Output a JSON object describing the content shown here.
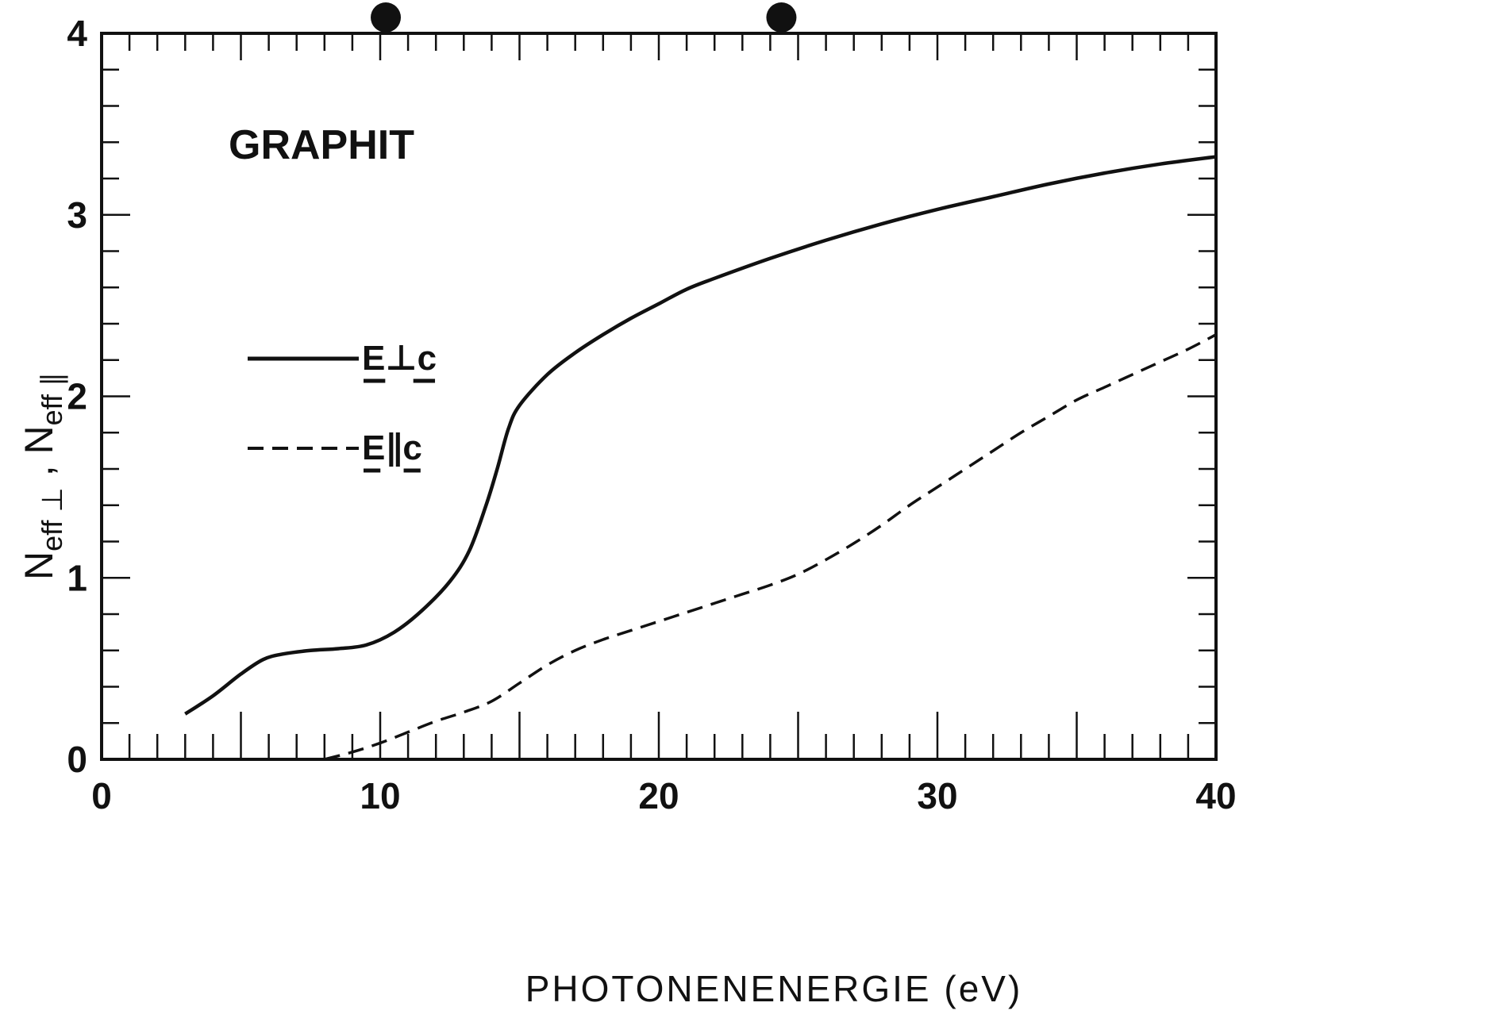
{
  "chart_data": {
    "type": "line",
    "label": "GRAPHIT",
    "xlabel": "PHOTONENENERGIE (eV)",
    "ylabel": "N_eff⊥ , N_eff∥",
    "ylabel_parts": {
      "base1": "N",
      "sub1": "eff ⊥",
      "sep": " , ",
      "base2": "N",
      "sub2": "eff ∥"
    },
    "xlim": [
      0,
      40
    ],
    "ylim": [
      0,
      4
    ],
    "xticks": [
      0,
      10,
      20,
      30,
      40
    ],
    "xtick_labels": [
      "0",
      "10",
      "20",
      "30",
      "40"
    ],
    "yticks": [
      0,
      1,
      2,
      3,
      4
    ],
    "ytick_labels": [
      "0",
      "1",
      "2",
      "3",
      "4"
    ],
    "grid": false,
    "legend_position": "upper-left",
    "top_markers_x": [
      10.2,
      24.4
    ],
    "colors": {
      "line": "#111111",
      "background": "#ffffff"
    },
    "series": [
      {
        "name": "E⊥c",
        "style": "solid",
        "x": [
          3.0,
          4.0,
          5.0,
          5.8,
          6.5,
          7.5,
          8.5,
          9.5,
          10.5,
          11.5,
          12.5,
          13.2,
          13.8,
          14.2,
          14.6,
          15.0,
          16.0,
          17.0,
          18.0,
          19.0,
          20.0,
          21.0,
          22.0,
          24.0,
          26.0,
          28.0,
          30.0,
          32.0,
          34.0,
          36.0,
          38.0,
          40.0
        ],
        "values": [
          0.25,
          0.35,
          0.47,
          0.55,
          0.58,
          0.6,
          0.61,
          0.63,
          0.7,
          0.82,
          0.98,
          1.15,
          1.4,
          1.6,
          1.82,
          1.95,
          2.12,
          2.24,
          2.34,
          2.43,
          2.51,
          2.59,
          2.65,
          2.76,
          2.86,
          2.95,
          3.03,
          3.1,
          3.17,
          3.23,
          3.28,
          3.32
        ]
      },
      {
        "name": "E∥c",
        "style": "dashed",
        "x": [
          8.0,
          9.0,
          10.0,
          11.0,
          12.0,
          13.0,
          14.0,
          15.0,
          16.0,
          17.0,
          18.0,
          19.0,
          20.0,
          21.0,
          22.0,
          23.0,
          24.0,
          25.0,
          26.0,
          27.0,
          28.0,
          29.0,
          30.0,
          31.0,
          32.0,
          33.0,
          34.0,
          35.0,
          36.0,
          37.0,
          38.0,
          39.0,
          40.0
        ],
        "values": [
          0.0,
          0.04,
          0.09,
          0.15,
          0.21,
          0.26,
          0.32,
          0.42,
          0.52,
          0.6,
          0.66,
          0.71,
          0.76,
          0.81,
          0.86,
          0.91,
          0.96,
          1.02,
          1.1,
          1.19,
          1.29,
          1.4,
          1.5,
          1.6,
          1.7,
          1.8,
          1.89,
          1.98,
          2.05,
          2.12,
          2.19,
          2.26,
          2.34
        ]
      }
    ]
  }
}
